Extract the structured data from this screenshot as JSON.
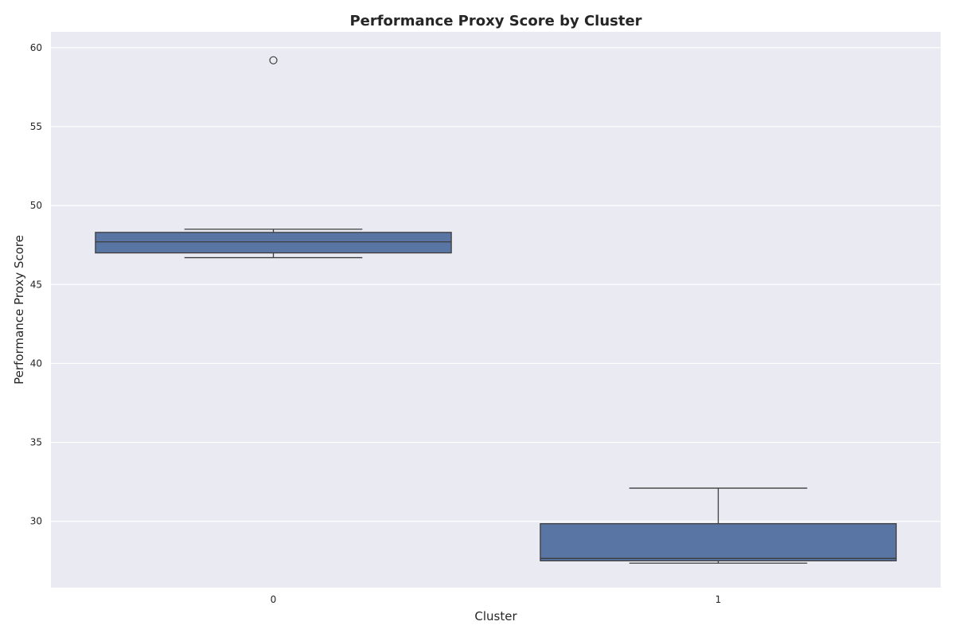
{
  "chart_data": {
    "type": "box",
    "title": "Performance Proxy Score by Cluster",
    "xlabel": "Cluster",
    "ylabel": "Performance Proxy Score",
    "categories": [
      "0",
      "1"
    ],
    "ylim": [
      25.8,
      61
    ],
    "yticks": [
      30,
      35,
      40,
      45,
      50,
      55,
      60
    ],
    "grid": true,
    "series": [
      {
        "category": "0",
        "whisker_low": 46.7,
        "q1": 47.0,
        "median": 47.7,
        "q3": 48.3,
        "whisker_high": 48.5,
        "outliers": [
          59.2
        ]
      },
      {
        "category": "1",
        "whisker_low": 27.35,
        "q1": 27.5,
        "median": 27.65,
        "q3": 29.85,
        "whisker_high": 32.1,
        "outliers": []
      }
    ],
    "colors": {
      "box_fill": "#5975a4",
      "line": "#3d3d3d",
      "background": "#eaeaf2",
      "grid": "#ffffff"
    }
  }
}
